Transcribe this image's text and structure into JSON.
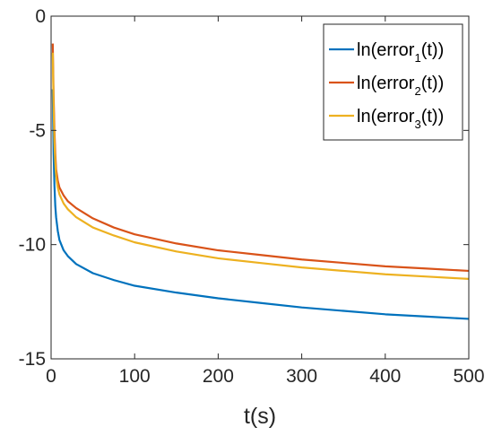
{
  "chart_data": {
    "type": "line",
    "title": "",
    "xlabel": "t(s)",
    "ylabel": "",
    "xlim": [
      0,
      500
    ],
    "ylim": [
      -15,
      0
    ],
    "xticks": [
      0,
      100,
      200,
      300,
      400,
      500
    ],
    "xtick_labels": [
      "0",
      "100",
      "200",
      "300",
      "400",
      "500"
    ],
    "yticks": [
      0,
      -5,
      -10,
      -15
    ],
    "ytick_labels": [
      "0",
      "-5",
      "-10",
      "-15"
    ],
    "grid": false,
    "legend_position": "top-right",
    "series": [
      {
        "name": "ln(error1(t))",
        "label_main": "ln(error",
        "label_sub": "1",
        "label_end": "(t))",
        "color": "#0072BD",
        "x": [
          2,
          3,
          4,
          5,
          6,
          8,
          10,
          15,
          20,
          30,
          50,
          75,
          100,
          150,
          200,
          250,
          300,
          350,
          400,
          450,
          500
        ],
        "y": [
          -3.2,
          -6.0,
          -7.4,
          -8.3,
          -8.8,
          -9.4,
          -9.8,
          -10.25,
          -10.5,
          -10.85,
          -11.25,
          -11.55,
          -11.8,
          -12.1,
          -12.35,
          -12.55,
          -12.75,
          -12.9,
          -13.05,
          -13.15,
          -13.25
        ]
      },
      {
        "name": "ln(error2(t))",
        "label_main": "ln(error",
        "label_sub": "2",
        "label_end": "(t))",
        "color": "#D95319",
        "x": [
          2,
          3,
          4,
          5,
          6,
          8,
          10,
          15,
          20,
          30,
          50,
          75,
          100,
          150,
          200,
          250,
          300,
          350,
          400,
          450,
          500
        ],
        "y": [
          -1.2,
          -3.5,
          -5.0,
          -6.0,
          -6.7,
          -7.2,
          -7.5,
          -7.85,
          -8.1,
          -8.4,
          -8.85,
          -9.25,
          -9.55,
          -9.95,
          -10.25,
          -10.45,
          -10.65,
          -10.8,
          -10.95,
          -11.05,
          -11.15
        ]
      },
      {
        "name": "ln(error3(t))",
        "label_main": "ln(error",
        "label_sub": "3",
        "label_end": "(t))",
        "color": "#EDB120",
        "x": [
          2,
          3,
          4,
          5,
          6,
          8,
          10,
          15,
          20,
          30,
          50,
          75,
          100,
          150,
          200,
          250,
          300,
          350,
          400,
          450,
          500
        ],
        "y": [
          -1.6,
          -4.0,
          -5.5,
          -6.4,
          -7.0,
          -7.5,
          -7.8,
          -8.2,
          -8.45,
          -8.8,
          -9.25,
          -9.6,
          -9.9,
          -10.3,
          -10.6,
          -10.8,
          -11.0,
          -11.15,
          -11.3,
          -11.4,
          -11.5
        ]
      }
    ]
  }
}
